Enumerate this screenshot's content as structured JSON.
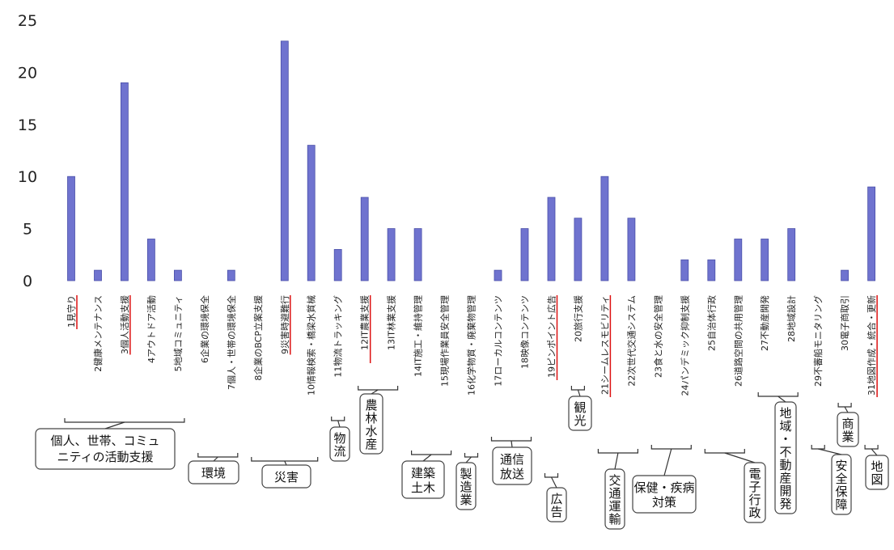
{
  "chart_data": {
    "type": "bar",
    "title": "",
    "xlabel": "",
    "ylabel": "",
    "ylim": [
      0,
      25
    ],
    "yticks": [
      0,
      5,
      10,
      15,
      20,
      25
    ],
    "grid": false,
    "colors": {
      "bar": "#6f73cf",
      "underline": "#dd1111"
    },
    "categories": [
      "1見守り",
      "2健康メンテナンス",
      "3個人活動支援",
      "4アウトドア活動",
      "5地域コミュニティ",
      "6企業の環境保全",
      "7個人・世帯の環境保全",
      "8企業のBCP立案支援",
      "9災害時避難行",
      "10情報検索・橋梁水質械",
      "11物流トラッキング",
      "12IT農業支援",
      "13IT林業支援",
      "14IT施工・維持管理",
      "15現場作業員安全管理",
      "16化学物質・廃棄物管理",
      "17ローカルコンテンツ",
      "18映像コンテンツ",
      "19ピンポイント広告",
      "20旅行支援",
      "21シームレスモビリティ",
      "22次世代交通システム",
      "23食と水の安全管理",
      "24パンデミック抑制支援",
      "25自治体行政",
      "26道路空間の共用管理",
      "27不動産開発",
      "28地域設計",
      "29不審船モニタリング",
      "30電子商取引",
      "31地図作成・統合・更新"
    ],
    "values": [
      10,
      1,
      19,
      4,
      1,
      0,
      1,
      0,
      23,
      13,
      3,
      8,
      5,
      5,
      0,
      0,
      1,
      5,
      8,
      6,
      10,
      6,
      0,
      2,
      2,
      4,
      4,
      5,
      0,
      1,
      9
    ],
    "underlined": [
      1,
      3,
      9,
      12,
      19,
      21,
      31
    ],
    "groups": [
      {
        "label": "個人、世帯、コミュニティの活動支援",
        "from": 1,
        "to": 5
      },
      {
        "label": "環境",
        "from": 6,
        "to": 7
      },
      {
        "label": "災害",
        "from": 8,
        "to": 10
      },
      {
        "label": "物流",
        "from": 11,
        "to": 11
      },
      {
        "label": "農林水産",
        "from": 12,
        "to": 13
      },
      {
        "label": "建築土木",
        "from": 14,
        "to": 15
      },
      {
        "label": "製造業",
        "from": 16,
        "to": 16
      },
      {
        "label": "通信放送",
        "from": 17,
        "to": 18
      },
      {
        "label": "広告",
        "from": 19,
        "to": 19
      },
      {
        "label": "観光",
        "from": 20,
        "to": 20
      },
      {
        "label": "交通運輸",
        "from": 21,
        "to": 22
      },
      {
        "label": "保健・疾病対策",
        "from": 23,
        "to": 24
      },
      {
        "label": "電子行政",
        "from": 25,
        "to": 26
      },
      {
        "label": "地域・不動産開発",
        "from": 27,
        "to": 28
      },
      {
        "label": "安全保障",
        "from": 29,
        "to": 29
      },
      {
        "label": "商業",
        "from": 30,
        "to": 30
      },
      {
        "label": "地図",
        "from": 31,
        "to": 31
      }
    ]
  }
}
